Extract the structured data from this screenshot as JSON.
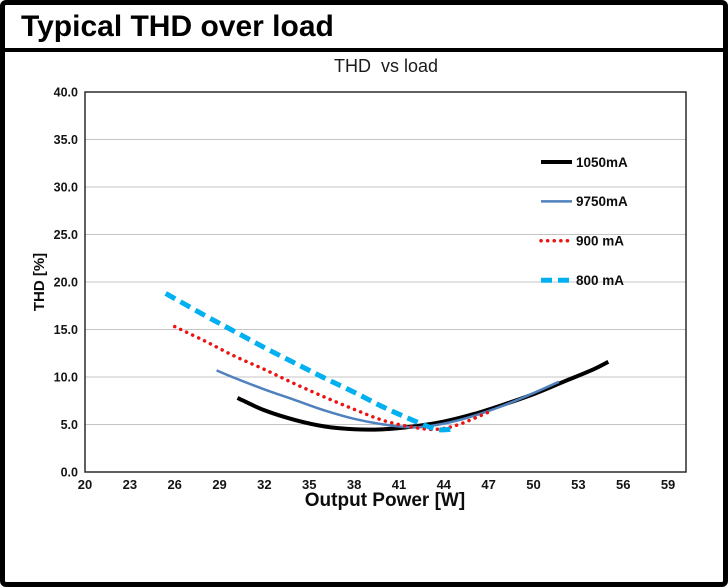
{
  "page": {
    "title": "Typical THD over load"
  },
  "chart_data": {
    "type": "line",
    "title": "THD  vs load",
    "xlabel": "Output Power [W]",
    "ylabel": "THD [%]",
    "xlim": [
      20,
      60.2
    ],
    "ylim": [
      0,
      40
    ],
    "x_ticks": [
      "20",
      "23",
      "26",
      "29",
      "32",
      "35",
      "38",
      "41",
      "44",
      "47",
      "50",
      "53",
      "56",
      "59"
    ],
    "y_ticks": [
      "0.0",
      "5.0",
      "10.0",
      "15.0",
      "20.0",
      "25.0",
      "30.0",
      "35.0",
      "40.0"
    ],
    "grid": "horizontal",
    "grid_color": "#c4c4c4",
    "plot_border_color": "#2b2b2b",
    "legend_position": "inside-top-right",
    "series": [
      {
        "name": "1050mA",
        "color": "#000000",
        "style": "solid",
        "width": 4,
        "points": [
          [
            30.2,
            7.8
          ],
          [
            32,
            6.5
          ],
          [
            34,
            5.5
          ],
          [
            36,
            4.8
          ],
          [
            38,
            4.5
          ],
          [
            40,
            4.5
          ],
          [
            42,
            4.8
          ],
          [
            44,
            5.3
          ],
          [
            46,
            6.1
          ],
          [
            48,
            7.1
          ],
          [
            50,
            8.2
          ],
          [
            52,
            9.5
          ],
          [
            54,
            10.8
          ],
          [
            55,
            11.6
          ]
        ]
      },
      {
        "name": "9750mA",
        "color": "#4f81bd",
        "style": "solid",
        "width": 2.5,
        "points": [
          [
            28.8,
            10.7
          ],
          [
            30,
            9.9
          ],
          [
            32,
            8.7
          ],
          [
            34,
            7.6
          ],
          [
            36,
            6.5
          ],
          [
            38,
            5.6
          ],
          [
            40,
            5.0
          ],
          [
            42,
            4.7
          ],
          [
            44,
            5.1
          ],
          [
            46,
            5.9
          ],
          [
            48,
            7.0
          ],
          [
            50,
            8.3
          ],
          [
            51.7,
            9.5
          ]
        ]
      },
      {
        "name": "900 mA",
        "color": "#ee1111",
        "style": "dotted",
        "width": 3.5,
        "points": [
          [
            26,
            15.3
          ],
          [
            28,
            13.8
          ],
          [
            30,
            12.2
          ],
          [
            32,
            10.8
          ],
          [
            34,
            9.3
          ],
          [
            36,
            7.9
          ],
          [
            38,
            6.6
          ],
          [
            40,
            5.4
          ],
          [
            42,
            4.7
          ],
          [
            43.5,
            4.5
          ],
          [
            45,
            5.0
          ],
          [
            47,
            6.3
          ]
        ]
      },
      {
        "name": "800 mA",
        "color": "#00b0f0",
        "style": "dashed",
        "width": 5,
        "points": [
          [
            25.4,
            18.8
          ],
          [
            28,
            16.5
          ],
          [
            30,
            14.8
          ],
          [
            32,
            13.1
          ],
          [
            34,
            11.5
          ],
          [
            36,
            9.9
          ],
          [
            38,
            8.4
          ],
          [
            40,
            6.8
          ],
          [
            42,
            5.4
          ],
          [
            43.5,
            4.5
          ],
          [
            44.5,
            4.5
          ]
        ]
      }
    ]
  }
}
